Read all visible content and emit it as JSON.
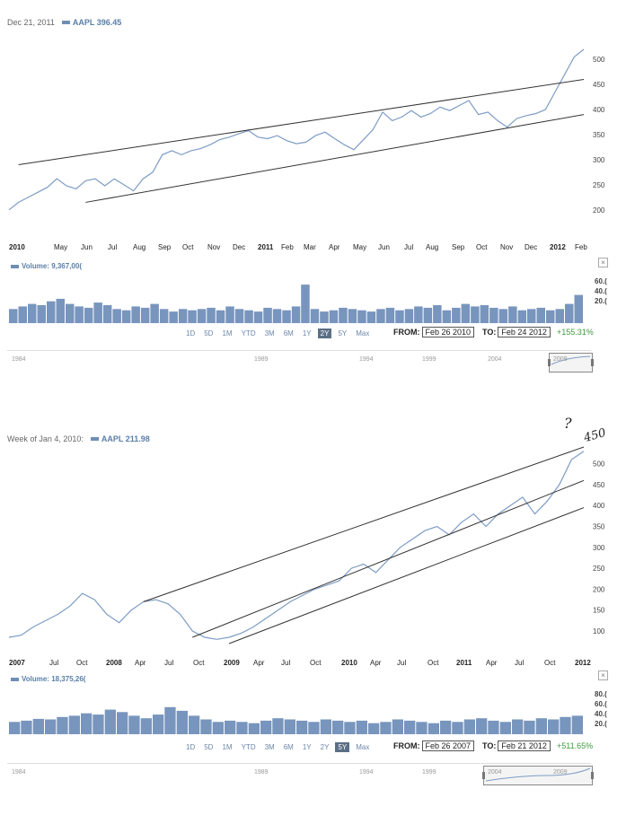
{
  "chart_data": [
    {
      "type": "line",
      "header": {
        "date": "Dec 21, 2011",
        "symbol_value": "AAPL 396.45"
      },
      "x_labels": [
        "2010",
        "May",
        "Jun",
        "Jul",
        "Aug",
        "Sep",
        "Oct",
        "Nov",
        "Dec",
        "2011",
        "Feb",
        "Mar",
        "Apr",
        "May",
        "Jun",
        "Jul",
        "Aug",
        "Sep",
        "Oct",
        "Nov",
        "Dec",
        "2012",
        "Feb"
      ],
      "y_ticks": [
        200,
        250,
        300,
        350,
        400,
        450,
        500
      ],
      "ylim": [
        180,
        520
      ],
      "series": [
        {
          "values": [
            200,
            215,
            225,
            235,
            245,
            262,
            248,
            242,
            258,
            262,
            248,
            262,
            250,
            238,
            262,
            275,
            310,
            318,
            310,
            318,
            322,
            330,
            340,
            345,
            352,
            358,
            345,
            342,
            348,
            338,
            332,
            335,
            348,
            355,
            342,
            330,
            320,
            340,
            360,
            395,
            378,
            385,
            398,
            385,
            392,
            405,
            398,
            408,
            418,
            390,
            395,
            378,
            365,
            382,
            388,
            392,
            400,
            435,
            470,
            505,
            520
          ]
        }
      ],
      "volume_label": "Volume: 9,367,00(",
      "volume_ticks": [
        "60.(",
        "40.(",
        "20.("
      ],
      "volume": [
        22,
        26,
        30,
        28,
        34,
        38,
        30,
        26,
        24,
        32,
        28,
        22,
        20,
        26,
        24,
        30,
        22,
        18,
        22,
        20,
        22,
        24,
        20,
        26,
        22,
        20,
        18,
        24,
        22,
        20,
        26,
        60,
        22,
        18,
        20,
        24,
        22,
        20,
        18,
        22,
        24,
        20,
        22,
        26,
        24,
        28,
        20,
        24,
        30,
        26,
        28,
        24,
        22,
        26,
        20,
        22,
        24,
        20,
        22,
        30,
        44
      ],
      "trendlines": [
        {
          "from": {
            "i": 1,
            "v": 290
          },
          "to": {
            "i": 60,
            "v": 460
          }
        },
        {
          "from": {
            "i": 8,
            "v": 215
          },
          "to": {
            "i": 60,
            "v": 390
          }
        }
      ],
      "range_buttons": [
        "1D",
        "5D",
        "1M",
        "YTD",
        "3M",
        "6M",
        "1Y",
        "2Y",
        "5Y",
        "Max"
      ],
      "active_range": "2Y",
      "from_label": "FROM:",
      "from_date": "Feb 26 2010",
      "to_label": "TO:",
      "to_date": "Feb 24 2012",
      "change": "+155.31%",
      "navigator_labels": [
        "1984",
        "1989",
        "1994",
        "1999",
        "2004",
        "2009"
      ]
    },
    {
      "type": "line",
      "header": {
        "date": "Week of Jan 4, 2010:",
        "symbol_value": "AAPL 211.98"
      },
      "x_labels": [
        "2007",
        "Jul",
        "Oct",
        "2008",
        "Apr",
        "Jul",
        "Oct",
        "2009",
        "Apr",
        "Jul",
        "Oct",
        "2010",
        "Apr",
        "Jul",
        "Oct",
        "2011",
        "Apr",
        "Jul",
        "Oct",
        "2012"
      ],
      "y_ticks": [
        100,
        150,
        200,
        250,
        300,
        350,
        400,
        450,
        500
      ],
      "ylim": [
        70,
        540
      ],
      "series": [
        {
          "values": [
            85,
            90,
            110,
            125,
            140,
            160,
            190,
            175,
            140,
            120,
            150,
            170,
            175,
            165,
            140,
            100,
            85,
            80,
            85,
            95,
            110,
            130,
            150,
            170,
            185,
            200,
            210,
            220,
            250,
            260,
            240,
            270,
            300,
            320,
            340,
            350,
            330,
            360,
            380,
            350,
            380,
            400,
            420,
            380,
            410,
            450,
            510,
            530
          ]
        }
      ],
      "volume_label": "Volume: 18,375,26(",
      "volume_ticks": [
        "80.(",
        "60.(",
        "40.(",
        "20.("
      ],
      "volume": [
        20,
        22,
        25,
        24,
        28,
        30,
        34,
        32,
        40,
        36,
        30,
        26,
        32,
        44,
        38,
        30,
        24,
        20,
        22,
        20,
        18,
        22,
        26,
        24,
        22,
        20,
        24,
        22,
        20,
        22,
        18,
        20,
        24,
        22,
        20,
        18,
        22,
        20,
        24,
        26,
        22,
        20,
        24,
        22,
        26,
        24,
        28,
        30
      ],
      "trendlines": [
        {
          "from": {
            "i": 11,
            "v": 170
          },
          "to": {
            "i": 47,
            "v": 540
          }
        },
        {
          "from": {
            "i": 15,
            "v": 85
          },
          "to": {
            "i": 47,
            "v": 460
          }
        },
        {
          "from": {
            "i": 18,
            "v": 70
          },
          "to": {
            "i": 47,
            "v": 395
          }
        }
      ],
      "range_buttons": [
        "1D",
        "5D",
        "1M",
        "YTD",
        "3M",
        "6M",
        "1Y",
        "2Y",
        "5Y",
        "Max"
      ],
      "active_range": "5Y",
      "from_label": "FROM:",
      "from_date": "Feb 26 2007",
      "to_label": "TO:",
      "to_date": "Feb 21 2012",
      "change": "+511.65%",
      "navigator_labels": [
        "1984",
        "1989",
        "1994",
        "1999",
        "2004",
        "2009"
      ],
      "annotation": "?",
      "annotation2": "450"
    }
  ],
  "colors": {
    "line": "#7d9cc4",
    "volume": "#7895bd",
    "trend": "#333333",
    "active_button": "#5b6f86",
    "change": "#3c9a3c"
  }
}
